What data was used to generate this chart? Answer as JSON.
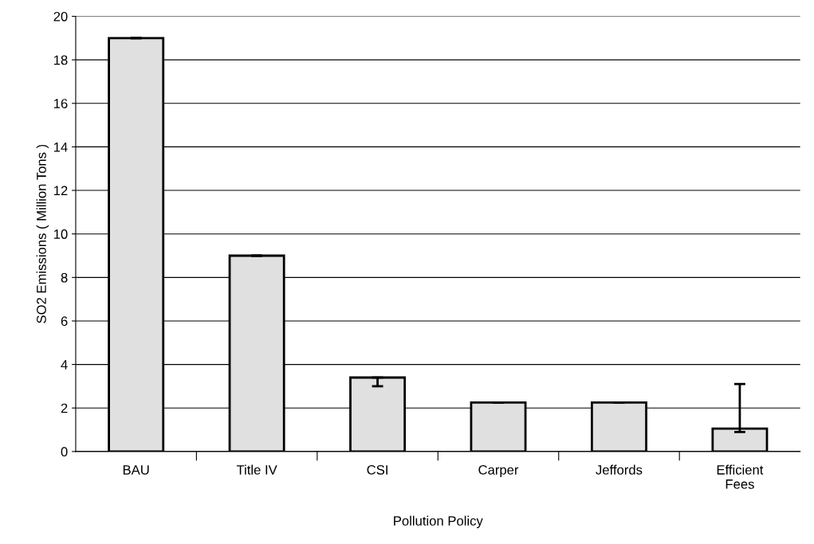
{
  "chart_data": {
    "type": "bar",
    "xlabel": "Pollution Policy",
    "ylabel": "SO2 Emissions ( Million Tons )",
    "categories": [
      "BAU",
      "Title IV",
      "CSI",
      "Carper",
      "Jeffords",
      "Efficient\nFees"
    ],
    "values": [
      19,
      9,
      3.4,
      2.25,
      2.25,
      1.05
    ],
    "errors": [
      [
        19,
        19
      ],
      [
        9,
        9
      ],
      [
        3.0,
        3.4
      ],
      [
        2.25,
        2.25
      ],
      [
        2.25,
        2.25
      ],
      [
        0.9,
        3.1
      ]
    ],
    "color": "#e0e0e0",
    "ylim": [
      0,
      20
    ],
    "yticks": [
      0,
      2,
      4,
      6,
      8,
      10,
      12,
      14,
      16,
      18,
      20
    ],
    "grid": "y"
  }
}
